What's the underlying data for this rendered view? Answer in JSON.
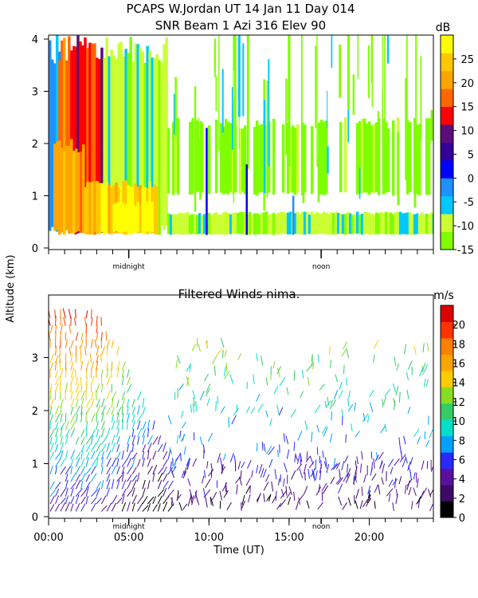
{
  "header": {
    "title_line1": "PCAPS W.Jordan UT  14 Jan 11 Day 014",
    "title_line2": "SNR Beam 1 Azi 316 Elev 90"
  },
  "chart_data": [
    {
      "type": "heatmap",
      "name": "snr",
      "colorbar_unit": "dB",
      "colorbar_ticks": [
        "25",
        "20",
        "15",
        "10",
        "5",
        "0",
        "-5",
        "-10",
        "-15"
      ],
      "colorbar_range": [
        -15,
        30
      ],
      "colorbar_colors": [
        "#7fff00",
        "#ccff33",
        "#00c8ff",
        "#1e90ff",
        "#0000ff",
        "#330099",
        "#5b0d7a",
        "#ff0000",
        "#ff6600",
        "#ffa500",
        "#ffc800",
        "#ffff00"
      ],
      "y_ticks": [
        "4",
        "3",
        "2",
        "1",
        "0"
      ],
      "ylim": [
        0,
        4
      ],
      "xlim": [
        0,
        24
      ],
      "x_markers": [
        {
          "x": 5,
          "label": "midnight"
        },
        {
          "x": 17,
          "label": "noon"
        }
      ],
      "regions": [
        {
          "x": [
            0,
            0.6
          ],
          "y": [
            0.25,
            4.1
          ],
          "level": 3
        },
        {
          "x": [
            0.6,
            1.6
          ],
          "y": [
            0.25,
            4.1
          ],
          "level": 8
        },
        {
          "x": [
            1.6,
            3.4
          ],
          "y": [
            0.25,
            4.1
          ],
          "level": 7
        },
        {
          "x": [
            3.4,
            7.4
          ],
          "y": [
            0.25,
            4.1
          ],
          "level": 1
        },
        {
          "x": [
            0.3,
            2.2
          ],
          "y": [
            0.25,
            2.1
          ],
          "level": 9
        },
        {
          "x": [
            2.2,
            6.8
          ],
          "y": [
            0.25,
            1.3
          ],
          "level": 10
        },
        {
          "x": [
            4.0,
            6.5
          ],
          "y": [
            0.3,
            0.9
          ],
          "level": 11
        },
        {
          "x": [
            7.4,
            24
          ],
          "y": [
            0.25,
            0.7
          ],
          "level": 1
        },
        {
          "x": [
            7.4,
            24
          ],
          "y": [
            1.0,
            2.5
          ],
          "level": 0
        }
      ]
    },
    {
      "type": "scatter",
      "name": "winds",
      "title": "Filtered Winds nima.",
      "colorbar_unit": "m/s",
      "colorbar_ticks": [
        "20",
        "18",
        "16",
        "14",
        "12",
        "10",
        "8",
        "6",
        "4",
        "2",
        "0"
      ],
      "colorbar_range": [
        0,
        22
      ],
      "y_ticks": [
        "3",
        "2",
        "1",
        "0"
      ],
      "ylim": [
        0,
        4
      ],
      "xlim": [
        0,
        24
      ],
      "x_ticks": [
        {
          "x": 0,
          "label": "00:00"
        },
        {
          "x": 5,
          "label": "05:00"
        },
        {
          "x": 10,
          "label": "10:00"
        },
        {
          "x": 15,
          "label": "15:00"
        },
        {
          "x": 20,
          "label": "20:00"
        }
      ],
      "x_markers": [
        {
          "x": 5,
          "label": "midnight"
        },
        {
          "x": 17,
          "label": "noon"
        }
      ],
      "xlabel": "Time (UT)"
    }
  ],
  "shared_ylabel": "Altitude (km)"
}
